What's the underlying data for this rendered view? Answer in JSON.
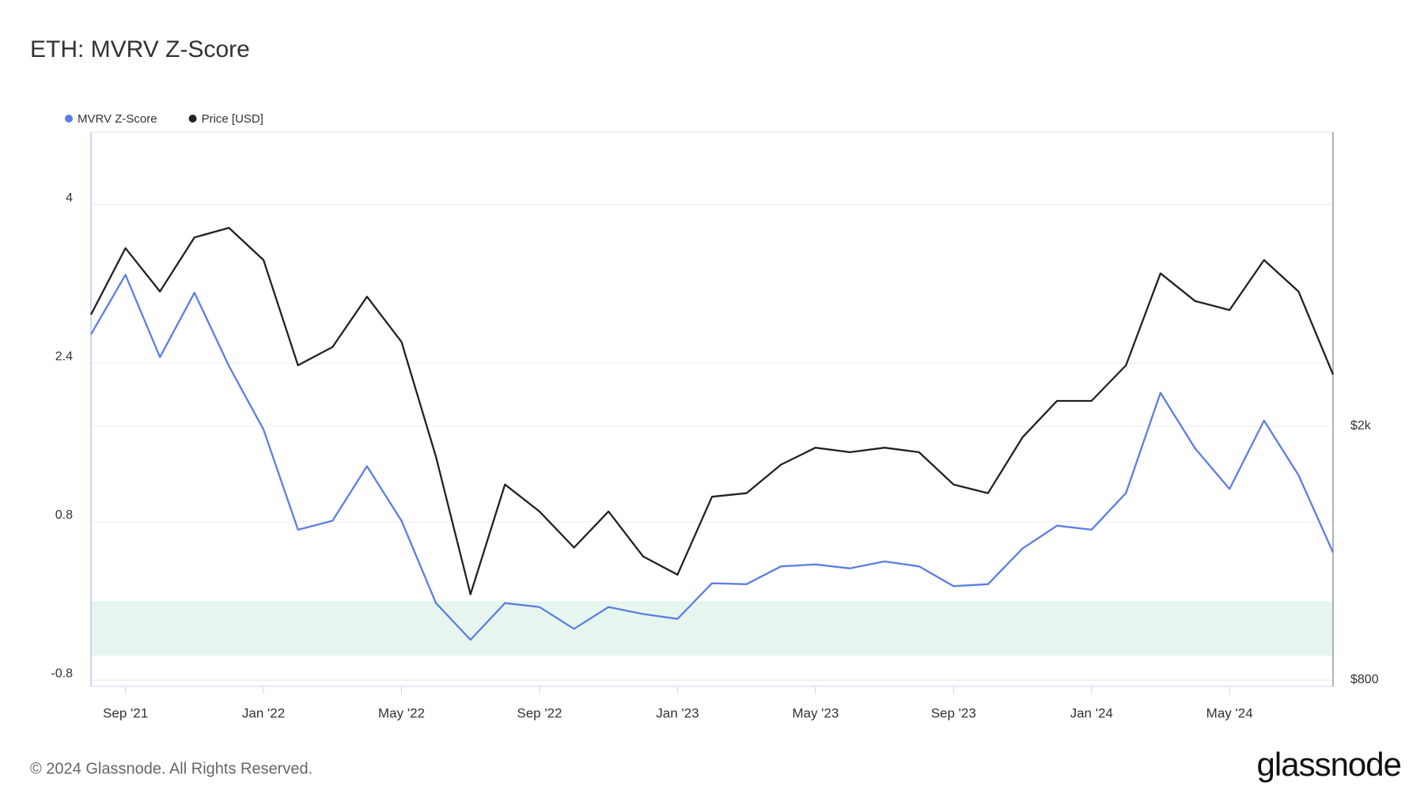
{
  "chart_data": {
    "type": "line",
    "title": "ETH: MVRV Z-Score",
    "x": [
      "2021-08",
      "2021-09",
      "2021-10",
      "2021-11",
      "2021-12",
      "2022-01",
      "2022-02",
      "2022-03",
      "2022-04",
      "2022-05",
      "2022-06",
      "2022-07",
      "2022-08",
      "2022-09",
      "2022-10",
      "2022-11",
      "2022-12",
      "2023-01",
      "2023-02",
      "2023-03",
      "2023-04",
      "2023-05",
      "2023-06",
      "2023-07",
      "2023-08",
      "2023-09",
      "2023-10",
      "2023-11",
      "2023-12",
      "2024-01",
      "2024-02",
      "2024-03",
      "2024-04",
      "2024-05",
      "2024-06",
      "2024-07",
      "2024-08"
    ],
    "series": [
      {
        "name": "MVRV Z-Score",
        "color": "#5b7ee5",
        "values": [
          2.69,
          3.29,
          2.46,
          3.11,
          2.37,
          1.73,
          0.72,
          0.81,
          1.36,
          0.81,
          -0.02,
          -0.39,
          -0.02,
          -0.06,
          -0.28,
          -0.06,
          -0.13,
          -0.18,
          0.18,
          0.17,
          0.35,
          0.37,
          0.33,
          0.4,
          0.35,
          0.15,
          0.17,
          0.53,
          0.76,
          0.72,
          1.09,
          2.1,
          1.54,
          1.13,
          1.82,
          1.27,
          0.49
        ]
      },
      {
        "name": "Price [USD]",
        "color": "#222222",
        "axis": "y2",
        "values": [
          2990,
          3800,
          3250,
          3950,
          4090,
          3640,
          2490,
          2660,
          3190,
          2710,
          1790,
          1090,
          1620,
          1470,
          1290,
          1470,
          1250,
          1170,
          1550,
          1570,
          1740,
          1850,
          1820,
          1850,
          1820,
          1620,
          1570,
          1920,
          2190,
          2190,
          2490,
          3470,
          3140,
          3040,
          3640,
          3250,
          2410
        ]
      }
    ],
    "xlim": [
      "2021-08",
      "2024-08"
    ],
    "xticks": [
      {
        "value": "2021-09",
        "label": "Sep '21"
      },
      {
        "value": "2022-01",
        "label": "Jan '22"
      },
      {
        "value": "2022-05",
        "label": "May '22"
      },
      {
        "value": "2022-09",
        "label": "Sep '22"
      },
      {
        "value": "2023-01",
        "label": "Jan '23"
      },
      {
        "value": "2023-05",
        "label": "May '23"
      },
      {
        "value": "2023-09",
        "label": "Sep '23"
      },
      {
        "value": "2024-01",
        "label": "Jan '24"
      },
      {
        "value": "2024-05",
        "label": "May '24"
      }
    ],
    "ylim": [
      -0.86,
      4.73
    ],
    "yticks": [
      -0.8,
      0.8,
      2.4,
      4
    ],
    "y2lim": [
      782,
      5777
    ],
    "y2ticks": [
      {
        "value": 800,
        "label": "$800"
      },
      {
        "value": 2000,
        "label": "$2k"
      }
    ],
    "y2log": true,
    "grid": true,
    "legend": "top-left",
    "band": {
      "range": [
        -0.55,
        0
      ],
      "color": "#e6f6ee"
    }
  },
  "footer": {
    "copyright": "© 2024 Glassnode. All Rights Reserved.",
    "logo": "glassnode"
  }
}
